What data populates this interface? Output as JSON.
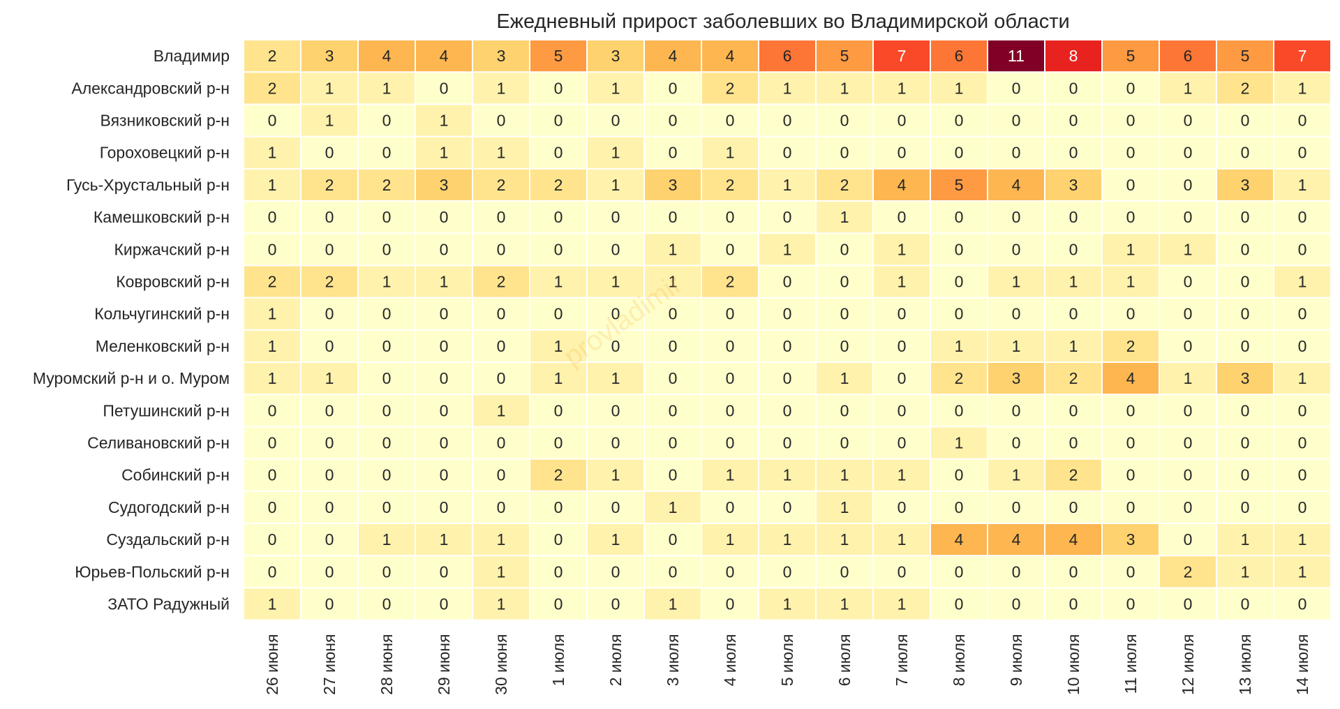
{
  "chart_data": {
    "type": "heatmap",
    "title": "Ежедневный прирост заболевших во Владимирской области",
    "xlabel": "",
    "ylabel": "",
    "watermark": "provladimir",
    "color_scale": {
      "min": 0,
      "max": 11,
      "stops": [
        "#ffffcc",
        "#ffeda0",
        "#fed976",
        "#feb24c",
        "#fd8d3c",
        "#fc4e2a",
        "#e31a1c",
        "#bd0026",
        "#800026"
      ]
    },
    "columns": [
      "26 июня",
      "27 июня",
      "28 июня",
      "29 июня",
      "30 июня",
      "1 июля",
      "2 июля",
      "3 июля",
      "4 июля",
      "5 июля",
      "6 июля",
      "7 июля",
      "8 июля",
      "9 июля",
      "10 июля",
      "11 июля",
      "12 июля",
      "13 июля",
      "14 июля"
    ],
    "rows": [
      {
        "name": "Владимир",
        "values": [
          2,
          3,
          4,
          4,
          3,
          5,
          3,
          4,
          4,
          6,
          5,
          7,
          6,
          11,
          8,
          5,
          6,
          5,
          7
        ]
      },
      {
        "name": "Александровский р-н",
        "values": [
          2,
          1,
          1,
          0,
          1,
          0,
          1,
          0,
          2,
          1,
          1,
          1,
          1,
          0,
          0,
          0,
          1,
          2,
          1
        ]
      },
      {
        "name": "Вязниковский р-н",
        "values": [
          0,
          1,
          0,
          1,
          0,
          0,
          0,
          0,
          0,
          0,
          0,
          0,
          0,
          0,
          0,
          0,
          0,
          0,
          0
        ]
      },
      {
        "name": "Гороховецкий р-н",
        "values": [
          1,
          0,
          0,
          1,
          1,
          0,
          1,
          0,
          1,
          0,
          0,
          0,
          0,
          0,
          0,
          0,
          0,
          0,
          0
        ]
      },
      {
        "name": "Гусь-Хрустальный р-н",
        "values": [
          1,
          2,
          2,
          3,
          2,
          2,
          1,
          3,
          2,
          1,
          2,
          4,
          5,
          4,
          3,
          0,
          0,
          3,
          1
        ]
      },
      {
        "name": "Камешковский р-н",
        "values": [
          0,
          0,
          0,
          0,
          0,
          0,
          0,
          0,
          0,
          0,
          1,
          0,
          0,
          0,
          0,
          0,
          0,
          0,
          0
        ]
      },
      {
        "name": "Киржачский р-н",
        "values": [
          0,
          0,
          0,
          0,
          0,
          0,
          0,
          1,
          0,
          1,
          0,
          1,
          0,
          0,
          0,
          1,
          1,
          0,
          0
        ]
      },
      {
        "name": "Ковровский р-н",
        "values": [
          2,
          2,
          1,
          1,
          2,
          1,
          1,
          1,
          2,
          0,
          0,
          1,
          0,
          1,
          1,
          1,
          0,
          0,
          1
        ]
      },
      {
        "name": "Кольчугинский р-н",
        "values": [
          1,
          0,
          0,
          0,
          0,
          0,
          0,
          0,
          0,
          0,
          0,
          0,
          0,
          0,
          0,
          0,
          0,
          0,
          0
        ]
      },
      {
        "name": "Меленковский р-н",
        "values": [
          1,
          0,
          0,
          0,
          0,
          1,
          0,
          0,
          0,
          0,
          0,
          0,
          1,
          1,
          1,
          2,
          0,
          0,
          0
        ]
      },
      {
        "name": "Муромский р-н и о. Муром",
        "values": [
          1,
          1,
          0,
          0,
          0,
          1,
          1,
          0,
          0,
          0,
          1,
          0,
          2,
          3,
          2,
          4,
          1,
          3,
          1
        ]
      },
      {
        "name": "Петушинский р-н",
        "values": [
          0,
          0,
          0,
          0,
          1,
          0,
          0,
          0,
          0,
          0,
          0,
          0,
          0,
          0,
          0,
          0,
          0,
          0,
          0
        ]
      },
      {
        "name": "Селивановский р-н",
        "values": [
          0,
          0,
          0,
          0,
          0,
          0,
          0,
          0,
          0,
          0,
          0,
          0,
          1,
          0,
          0,
          0,
          0,
          0,
          0
        ]
      },
      {
        "name": "Собинский р-н",
        "values": [
          0,
          0,
          0,
          0,
          0,
          2,
          1,
          0,
          1,
          1,
          1,
          1,
          0,
          1,
          2,
          0,
          0,
          0,
          0
        ]
      },
      {
        "name": "Судогодский р-н",
        "values": [
          0,
          0,
          0,
          0,
          0,
          0,
          0,
          1,
          0,
          0,
          1,
          0,
          0,
          0,
          0,
          0,
          0,
          0,
          0
        ]
      },
      {
        "name": "Суздальский р-н",
        "values": [
          0,
          0,
          1,
          1,
          1,
          0,
          1,
          0,
          1,
          1,
          1,
          1,
          4,
          4,
          4,
          3,
          0,
          1,
          1
        ]
      },
      {
        "name": "Юрьев-Польский р-н",
        "values": [
          0,
          0,
          0,
          0,
          1,
          0,
          0,
          0,
          0,
          0,
          0,
          0,
          0,
          0,
          0,
          0,
          2,
          1,
          1
        ]
      },
      {
        "name": "ЗАТО Радужный",
        "values": [
          1,
          0,
          0,
          0,
          1,
          0,
          0,
          1,
          0,
          1,
          1,
          1,
          0,
          0,
          0,
          0,
          0,
          0,
          0
        ]
      }
    ]
  }
}
